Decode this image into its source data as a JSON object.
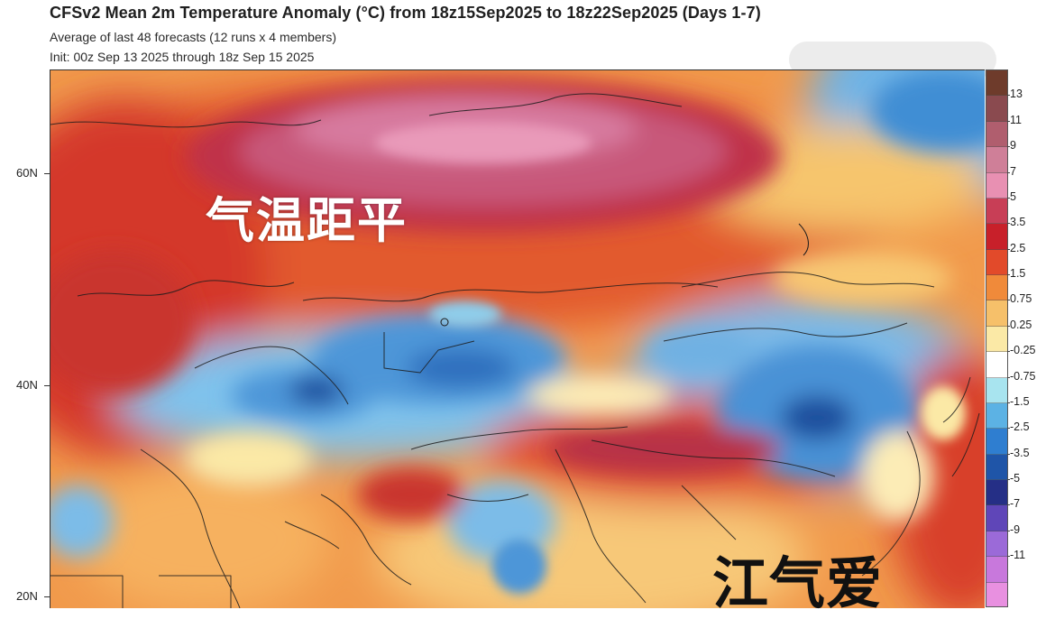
{
  "header": {
    "title": "CFSv2 Mean 2m Temperature Anomaly (°C) from 18z15Sep2025 to 18z22Sep2025 (Days 1-7)",
    "subtitle_1": "Average of last 48 forecasts (12 runs x 4 members)",
    "subtitle_2": "Init: 00z Sep 13 2025 through 18z Sep 15 2025"
  },
  "map": {
    "latitude_labels": [
      "60N",
      "40N",
      "20N"
    ],
    "overlay_text_1": "气温距平",
    "overlay_text_2": "江气爱"
  },
  "colorbar": {
    "labels": [
      "13",
      "11",
      "9",
      "7",
      "5",
      "3.5",
      "2.5",
      "1.5",
      "0.75",
      "0.25",
      "-0.25",
      "-0.75",
      "-1.5",
      "-2.5",
      "-3.5",
      "-5",
      "-7",
      "-9",
      "-11"
    ],
    "colors": [
      "#6e3b2b",
      "#8a4a4f",
      "#b05e6e",
      "#cf7f98",
      "#e890b2",
      "#c83e56",
      "#c8202a",
      "#e24a2a",
      "#f08a3a",
      "#f6c06a",
      "#fbe9a6",
      "#ffffff",
      "#a8e4ef",
      "#5cb2e4",
      "#2f7ed0",
      "#1f55a8",
      "#252f86",
      "#5f46b8",
      "#9b6ad8",
      "#c878dc",
      "#e890e0"
    ]
  },
  "colors": {
    "warm_strong": "#b92a3c",
    "warm_mid": "#e0542c",
    "warm_light": "#f4a24d",
    "neutral": "#fdf3cf",
    "cool_light": "#8fcdea",
    "cool_mid": "#3f8fd6",
    "cool_strong": "#1f4fa3",
    "peak": "#e792b4"
  }
}
